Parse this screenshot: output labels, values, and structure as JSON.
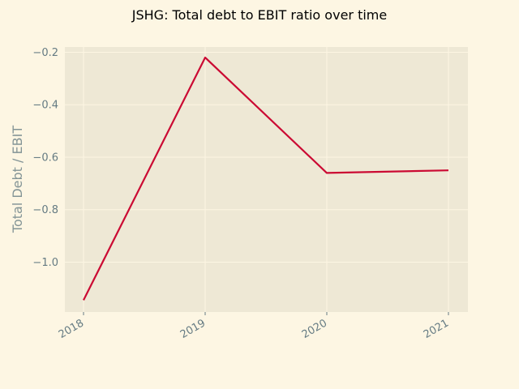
{
  "chart_data": {
    "type": "line",
    "title": "JSHG: Total debt to EBIT ratio over time",
    "xlabel": "",
    "ylabel": "Total Debt / EBIT",
    "x": [
      "2018",
      "2019",
      "2020",
      "2021"
    ],
    "series": [
      {
        "values": [
          -1.145,
          -0.22,
          -0.66,
          -0.65
        ]
      }
    ],
    "xlim": [
      "2018",
      "2021"
    ],
    "ylim": [
      -1.19,
      -0.18
    ],
    "yticks": [
      -1.0,
      -0.8,
      -0.6,
      -0.4,
      -0.2
    ],
    "ytick_labels": [
      "−1.0",
      "−0.8",
      "−0.6",
      "−0.4",
      "−0.2"
    ],
    "grid": true,
    "legend": "none",
    "colors": {
      "figure_background": "#fdf6e3",
      "plot_background": "#eee8d5",
      "grid": "#fdf6e3",
      "line": "#cb0a33",
      "tick_text": "#657b83",
      "axis_label": "#839496",
      "title": "#000000"
    }
  }
}
